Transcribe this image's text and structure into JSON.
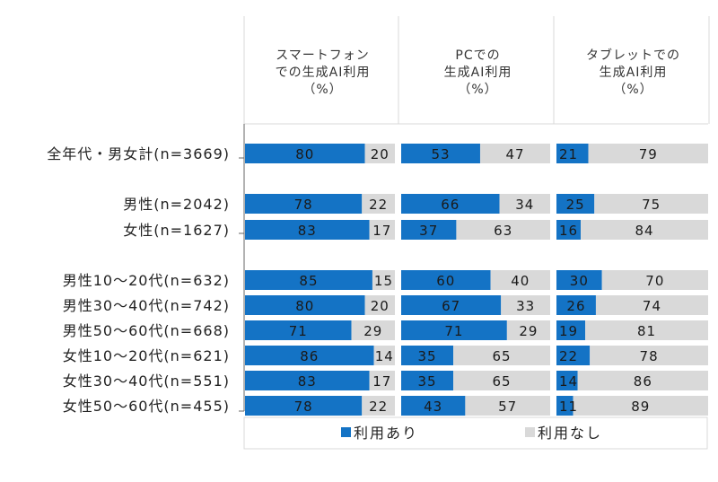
{
  "chart_data": {
    "type": "bar",
    "stacked": "100%",
    "panels": [
      {
        "title_lines": [
          "スマートフォン",
          "での生成AI利用",
          "（%）"
        ]
      },
      {
        "title_lines": [
          "PCでの",
          "生成AI利用",
          "（%）"
        ]
      },
      {
        "title_lines": [
          "タブレットでの",
          "生成AI利用",
          "（%）"
        ]
      }
    ],
    "categories": [
      "全年代・男女計(n=3669)",
      "男性(n=2042)",
      "女性(n=1627)",
      "男性10～20代(n=632)",
      "男性30～40代(n=742)",
      "男性50～60代(n=668)",
      "女性10～20代(n=621)",
      "女性30～40代(n=551)",
      "女性50～60代(n=455)"
    ],
    "groups": [
      [
        0
      ],
      [
        1,
        2
      ],
      [
        3,
        4,
        5,
        6,
        7,
        8
      ]
    ],
    "series": [
      {
        "name": "利用あり",
        "color": "#1473c5",
        "values": [
          [
            80,
            78,
            83,
            85,
            80,
            71,
            86,
            83,
            78
          ],
          [
            53,
            66,
            37,
            60,
            67,
            71,
            35,
            35,
            43
          ],
          [
            21,
            25,
            16,
            30,
            26,
            19,
            22,
            14,
            11
          ]
        ]
      },
      {
        "name": "利用なし",
        "color": "#d9d9d9",
        "values": [
          [
            20,
            22,
            17,
            15,
            20,
            29,
            14,
            17,
            22
          ],
          [
            47,
            34,
            63,
            40,
            33,
            29,
            65,
            65,
            57
          ],
          [
            79,
            75,
            84,
            70,
            74,
            81,
            78,
            86,
            89
          ]
        ]
      }
    ],
    "xlim": [
      0,
      100
    ],
    "legend": "bottom"
  }
}
